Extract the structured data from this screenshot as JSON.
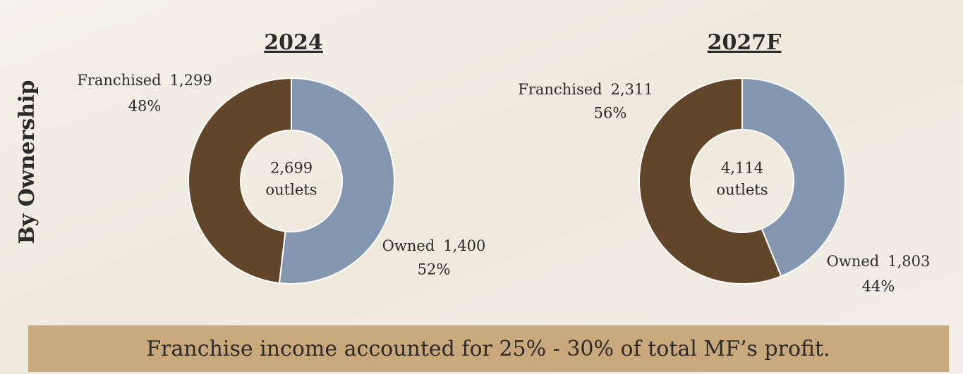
{
  "side_label": "By Ownership",
  "footer": "Franchise income accounted for 25% - 30% of total MF’s profit.",
  "chart_data": [
    {
      "type": "pie",
      "title": "2024",
      "categories": [
        "Owned",
        "Franchised"
      ],
      "values": [
        1400,
        1299
      ],
      "value_labels": [
        "1,400",
        "1,299"
      ],
      "shares": [
        52,
        48
      ],
      "share_labels": [
        "52%",
        "48%"
      ],
      "colors": [
        "#8497b0",
        "#61462a"
      ],
      "total": 2699,
      "total_label": "2,699",
      "total_unit": "outlets"
    },
    {
      "type": "pie",
      "title": "2027F",
      "categories": [
        "Owned",
        "Franchised"
      ],
      "values": [
        1803,
        2311
      ],
      "value_labels": [
        "1,803",
        "2,311"
      ],
      "shares": [
        44,
        56
      ],
      "share_labels": [
        "44%",
        "56%"
      ],
      "colors": [
        "#8497b0",
        "#61462a"
      ],
      "total": 4114,
      "total_label": "4,114",
      "total_unit": "outlets"
    }
  ]
}
